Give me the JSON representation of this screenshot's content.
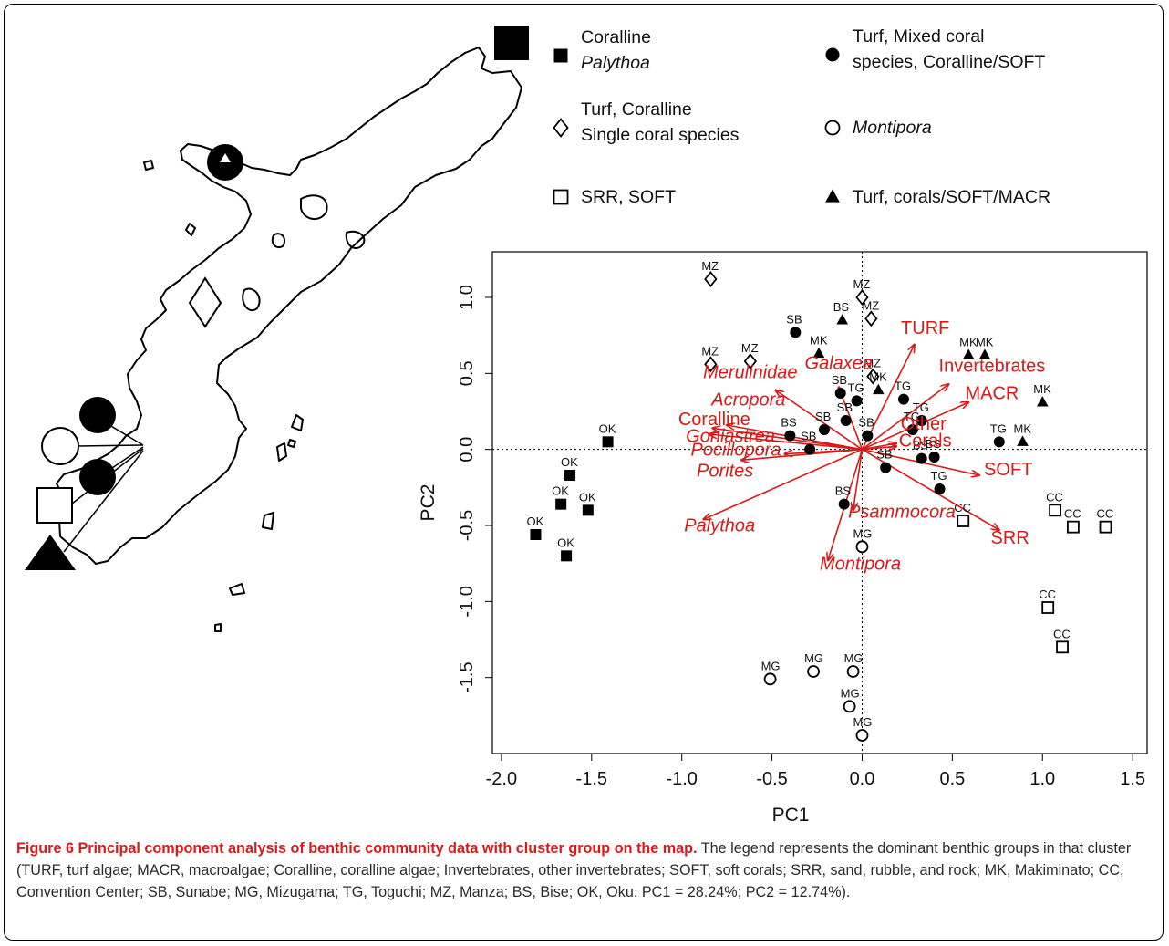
{
  "chart_data": {
    "type": "scatter",
    "xlabel": "PC1",
    "ylabel": "PC2",
    "xlim": [
      -2.05,
      1.58
    ],
    "ylim": [
      -2.0,
      1.3
    ],
    "x_ticks": [
      "-2.0",
      "-1.5",
      "-1.0",
      "-0.5",
      "0.0",
      "0.5",
      "1.0",
      "1.5"
    ],
    "y_ticks": [
      "-1.5",
      "-1.0",
      "-0.5",
      "0.0",
      "0.5",
      "1.0"
    ],
    "reference_lines": "dotted lines at x=0 and y=0",
    "groups": [
      {
        "id": "g1",
        "marker": "filled-square",
        "legend": [
          "Coralline",
          "Palythoa"
        ]
      },
      {
        "id": "g2",
        "marker": "filled-circle",
        "legend": [
          "Turf, Mixed coral",
          "species, Coralline/SOFT"
        ]
      },
      {
        "id": "g3",
        "marker": "open-diamond",
        "legend": [
          "Turf, Coralline",
          "Single coral species"
        ]
      },
      {
        "id": "g4",
        "marker": "open-circle",
        "legend": [
          "Montipora"
        ]
      },
      {
        "id": "g5",
        "marker": "open-square",
        "legend": [
          "SRR, SOFT"
        ]
      },
      {
        "id": "g6",
        "marker": "filled-triangle",
        "legend": [
          "Turf, corals/SOFT/MACR"
        ]
      }
    ],
    "points": [
      {
        "g": "g1",
        "x": -1.81,
        "y": -0.56,
        "label": "OK"
      },
      {
        "g": "g1",
        "x": -1.64,
        "y": -0.7,
        "label": "OK"
      },
      {
        "g": "g1",
        "x": -1.67,
        "y": -0.36,
        "label": "OK"
      },
      {
        "g": "g1",
        "x": -1.52,
        "y": -0.4,
        "label": "OK"
      },
      {
        "g": "g1",
        "x": -1.62,
        "y": -0.17,
        "label": "OK"
      },
      {
        "g": "g1",
        "x": -1.41,
        "y": 0.05,
        "label": "OK"
      },
      {
        "g": "g2",
        "x": -0.37,
        "y": 0.77,
        "label": "SB"
      },
      {
        "g": "g2",
        "x": -0.21,
        "y": 0.13,
        "label": "SB"
      },
      {
        "g": "g2",
        "x": -0.12,
        "y": 0.37,
        "label": "SB"
      },
      {
        "g": "g2",
        "x": -0.03,
        "y": 0.32,
        "label": "TG"
      },
      {
        "g": "g2",
        "x": -0.09,
        "y": 0.19,
        "label": "SB"
      },
      {
        "g": "g2",
        "x": 0.03,
        "y": 0.09,
        "label": "SB"
      },
      {
        "g": "g2",
        "x": -0.4,
        "y": 0.09,
        "label": "BS"
      },
      {
        "g": "g2",
        "x": -0.29,
        "y": 0.0,
        "label": "SB"
      },
      {
        "g": "g2",
        "x": -0.1,
        "y": -0.36,
        "label": "BS"
      },
      {
        "g": "g2",
        "x": 0.13,
        "y": -0.12,
        "label": "SB"
      },
      {
        "g": "g2",
        "x": 0.23,
        "y": 0.33,
        "label": "TG"
      },
      {
        "g": "g2",
        "x": 0.33,
        "y": 0.19,
        "label": "TG"
      },
      {
        "g": "g2",
        "x": 0.28,
        "y": 0.13,
        "label": "TG"
      },
      {
        "g": "g2",
        "x": 0.33,
        "y": -0.06,
        "label": "BS"
      },
      {
        "g": "g2",
        "x": 0.4,
        "y": -0.05,
        "label": "BS"
      },
      {
        "g": "g2",
        "x": 0.43,
        "y": -0.26,
        "label": "TG"
      },
      {
        "g": "g2",
        "x": 0.76,
        "y": 0.05,
        "label": "TG"
      },
      {
        "g": "g3",
        "x": -0.84,
        "y": 1.12,
        "label": "MZ"
      },
      {
        "g": "g3",
        "x": -0.84,
        "y": 0.56,
        "label": "MZ"
      },
      {
        "g": "g3",
        "x": -0.62,
        "y": 0.58,
        "label": "MZ"
      },
      {
        "g": "g3",
        "x": 0.0,
        "y": 1.0,
        "label": "MZ"
      },
      {
        "g": "g3",
        "x": 0.05,
        "y": 0.86,
        "label": "MZ"
      },
      {
        "g": "g3",
        "x": 0.06,
        "y": 0.48,
        "label": "MZ"
      },
      {
        "g": "g4",
        "x": 0.0,
        "y": -0.64,
        "label": "MG"
      },
      {
        "g": "g4",
        "x": -0.51,
        "y": -1.51,
        "label": "MG"
      },
      {
        "g": "g4",
        "x": -0.27,
        "y": -1.46,
        "label": "MG"
      },
      {
        "g": "g4",
        "x": -0.05,
        "y": -1.46,
        "label": "MG"
      },
      {
        "g": "g4",
        "x": -0.07,
        "y": -1.69,
        "label": "MG"
      },
      {
        "g": "g4",
        "x": 0.0,
        "y": -1.88,
        "label": "MG"
      },
      {
        "g": "g5",
        "x": 0.56,
        "y": -0.47,
        "label": "CC"
      },
      {
        "g": "g5",
        "x": 1.07,
        "y": -0.4,
        "label": "CC"
      },
      {
        "g": "g5",
        "x": 1.17,
        "y": -0.51,
        "label": "CC"
      },
      {
        "g": "g5",
        "x": 1.35,
        "y": -0.51,
        "label": "CC"
      },
      {
        "g": "g5",
        "x": 1.03,
        "y": -1.04,
        "label": "CC"
      },
      {
        "g": "g5",
        "x": 1.11,
        "y": -1.3,
        "label": "CC"
      },
      {
        "g": "g6",
        "x": -0.11,
        "y": 0.85,
        "label": "BS"
      },
      {
        "g": "g6",
        "x": -0.24,
        "y": 0.63,
        "label": "MK"
      },
      {
        "g": "g6",
        "x": 0.09,
        "y": 0.39,
        "label": "MK"
      },
      {
        "g": "g6",
        "x": 0.59,
        "y": 0.62,
        "label": "MK"
      },
      {
        "g": "g6",
        "x": 0.68,
        "y": 0.62,
        "label": "MK"
      },
      {
        "g": "g6",
        "x": 1.0,
        "y": 0.31,
        "label": "MK"
      },
      {
        "g": "g6",
        "x": 0.89,
        "y": 0.05,
        "label": "MK"
      }
    ],
    "arrows": [
      {
        "label": "TURF",
        "x": 0.29,
        "y": 0.69,
        "lx": 0.35,
        "ly": 0.76
      },
      {
        "label": "Invertebrates",
        "x": 0.48,
        "y": 0.43,
        "lx": 0.72,
        "ly": 0.51
      },
      {
        "label": "Galaxea",
        "x": -0.13,
        "y": 0.41,
        "lx": -0.13,
        "ly": 0.53
      },
      {
        "label": "Merulinidae",
        "x": -0.48,
        "y": 0.39,
        "lx": -0.62,
        "ly": 0.47
      },
      {
        "label": "Acropora",
        "x": -0.75,
        "y": 0.16,
        "lx": -0.63,
        "ly": 0.29
      },
      {
        "label": "Coralline",
        "x": -0.83,
        "y": 0.14,
        "lx": -0.82,
        "ly": 0.16
      },
      {
        "label": "Goniastrea",
        "x": -0.85,
        "y": 0.1,
        "lx": -0.73,
        "ly": 0.05
      },
      {
        "label": "Pocillopora",
        "x": -0.67,
        "y": -0.07,
        "lx": -0.7,
        "ly": -0.04
      },
      {
        "label": "Porites",
        "x": -0.43,
        "y": -0.03,
        "lx": -0.76,
        "ly": -0.18
      },
      {
        "label": "Palythoa",
        "x": -0.88,
        "y": -0.46,
        "lx": -0.79,
        "ly": -0.54
      },
      {
        "label": "Montipora",
        "x": -0.19,
        "y": -0.73,
        "lx": -0.01,
        "ly": -0.79
      },
      {
        "label": "Psammocora",
        "x": -0.05,
        "y": -0.4,
        "lx": 0.22,
        "ly": -0.45
      },
      {
        "label": "SOFT",
        "x": 0.65,
        "y": -0.17,
        "lx": 0.81,
        "ly": -0.17
      },
      {
        "label": "SRR",
        "x": 0.76,
        "y": -0.53,
        "lx": 0.82,
        "ly": -0.62
      },
      {
        "label": "MACR",
        "x": 0.59,
        "y": 0.31,
        "lx": 0.72,
        "ly": 0.33
      },
      {
        "label": "Other",
        "x": 0.19,
        "y": 0.04,
        "lx": 0.34,
        "ly": 0.13
      },
      {
        "label": "Corals",
        "x": 0.19,
        "y": 0.02,
        "lx": 0.35,
        "ly": 0.02
      }
    ]
  },
  "caption": {
    "title": "Figure 6 Principal component analysis of benthic community data with cluster group on the map.",
    "body": " The legend represents the dominant benthic groups in that cluster (TURF, turf algae; MACR, macroalgae; Coralline, coralline algae; Invertebrates, other invertebrates; SOFT, soft corals; SRR, sand, rubble, and rock; MK, Makiminato; CC, Convention Center; SB, Sunabe; MG, Mizugama; TG, Toguchi; MZ, Manza; BS, Bise; OK, Oku. PC1 = 28.24%; PC2 = 12.74%)."
  },
  "colors": {
    "arrows": "#d81b17",
    "markers": "#000000",
    "caption_title": "#d81b17"
  }
}
